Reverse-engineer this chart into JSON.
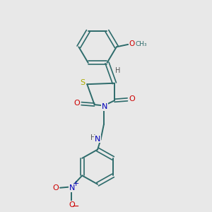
{
  "bg_color": "#e8e8e8",
  "bond_color": "#2d6b6b",
  "atom_colors": {
    "S": "#aaaa00",
    "N": "#0000bb",
    "O": "#cc0000",
    "C": "#2d6b6b",
    "H": "#555555"
  },
  "figsize": [
    3.0,
    3.0
  ],
  "dpi": 100
}
